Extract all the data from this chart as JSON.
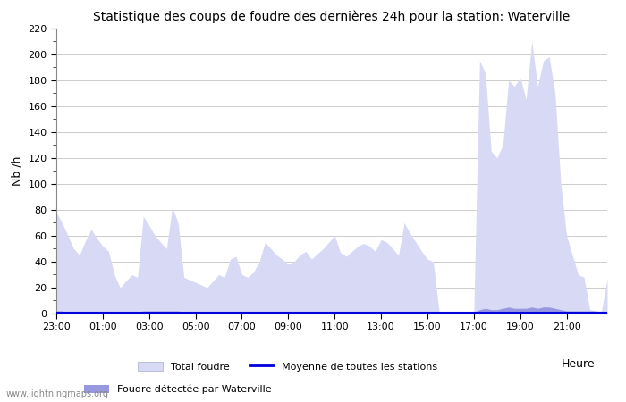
{
  "title": "Statistique des coups de foudre des dernières 24h pour la station: Waterville",
  "xlabel": "Heure",
  "ylabel": "Nb /h",
  "watermark": "www.lightningmaps.org",
  "ylim": [
    0,
    220
  ],
  "yticks": [
    0,
    20,
    40,
    60,
    80,
    100,
    120,
    140,
    160,
    180,
    200,
    220
  ],
  "x_labels": [
    "23:00",
    "01:00",
    "03:00",
    "05:00",
    "07:00",
    "09:00",
    "11:00",
    "13:00",
    "15:00",
    "17:00",
    "19:00",
    "21:00"
  ],
  "color_total": "#d8daf5",
  "color_waterville": "#9898e0",
  "color_moyenne": "#0000dd",
  "legend_total": "Total foudre",
  "legend_moyenne": "Moyenne de toutes les stations",
  "legend_waterville": "Foudre détectée par Waterville",
  "total_foudre": [
    78,
    70,
    60,
    50,
    45,
    56,
    65,
    58,
    52,
    48,
    30,
    20,
    25,
    30,
    28,
    75,
    68,
    60,
    55,
    50,
    82,
    70,
    28,
    26,
    24,
    22,
    20,
    25,
    30,
    28,
    42,
    44,
    30,
    28,
    32,
    40,
    55,
    50,
    45,
    42,
    38,
    40,
    45,
    48,
    42,
    46,
    50,
    55,
    60,
    47,
    44,
    48,
    52,
    54,
    52,
    48,
    57,
    55,
    50,
    45,
    70,
    62,
    55,
    48,
    42,
    40,
    2,
    1,
    1,
    1,
    1,
    1,
    2,
    195,
    185,
    125,
    120,
    130,
    180,
    175,
    182,
    165,
    210,
    175,
    195,
    198,
    170,
    100,
    60,
    45,
    30,
    28,
    3,
    2,
    2,
    27
  ],
  "waterville": [
    2,
    2,
    1,
    1,
    1,
    1,
    1,
    1,
    1,
    1,
    1,
    1,
    1,
    1,
    1,
    2,
    2,
    2,
    2,
    2,
    2,
    2,
    1,
    1,
    1,
    1,
    1,
    1,
    1,
    1,
    1,
    1,
    1,
    1,
    1,
    1,
    1,
    1,
    1,
    1,
    1,
    1,
    1,
    1,
    1,
    1,
    1,
    1,
    1,
    1,
    1,
    1,
    1,
    1,
    1,
    1,
    1,
    1,
    1,
    1,
    1,
    1,
    1,
    1,
    1,
    1,
    1,
    1,
    1,
    1,
    1,
    1,
    1,
    3,
    4,
    3,
    3,
    4,
    5,
    4,
    4,
    4,
    5,
    4,
    5,
    5,
    4,
    3,
    2,
    2,
    2,
    2,
    2,
    2,
    1,
    1
  ],
  "moyenne": [
    1,
    1,
    1,
    1,
    1,
    1,
    1,
    1,
    1,
    1,
    1,
    1,
    1,
    1,
    1,
    1,
    1,
    1,
    1,
    1,
    1,
    1,
    1,
    1,
    1,
    1,
    1,
    1,
    1,
    1,
    1,
    1,
    1,
    1,
    1,
    1,
    1,
    1,
    1,
    1,
    1,
    1,
    1,
    1,
    1,
    1,
    1,
    1,
    1,
    1,
    1,
    1,
    1,
    1,
    1,
    1,
    1,
    1,
    1,
    1,
    1,
    1,
    1,
    1,
    1,
    1,
    1,
    1,
    1,
    1,
    1,
    1,
    1,
    1,
    1,
    1,
    1,
    1,
    1,
    1,
    1,
    1,
    1,
    1,
    1,
    1,
    1,
    1,
    1,
    1,
    1,
    1,
    1,
    1,
    1,
    1
  ]
}
